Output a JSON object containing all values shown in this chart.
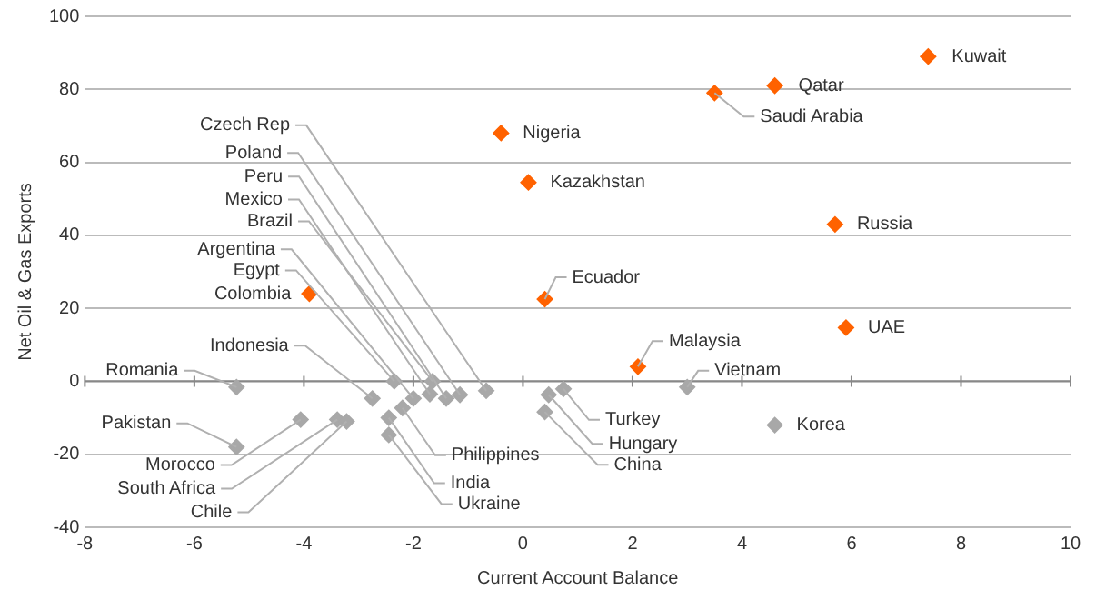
{
  "chart_data": {
    "type": "scatter",
    "xlabel": "Current Account Balance",
    "ylabel": "Net Oil & Gas Exports",
    "xlim": [
      -8,
      10
    ],
    "xticks": [
      -8,
      -6,
      -4,
      -2,
      0,
      2,
      4,
      6,
      8,
      10
    ],
    "ylim": [
      -40,
      100
    ],
    "yticks": [
      -40,
      -20,
      0,
      20,
      40,
      60,
      80,
      100
    ],
    "grid": "y",
    "legend": false,
    "marker": "diamond",
    "series": [
      {
        "color": "#ff6200",
        "x": [
          7.4,
          4.6,
          3.5,
          -0.4,
          0.1,
          5.7,
          0.4,
          -3.9,
          5.9,
          2.1
        ],
        "values": [
          89,
          81,
          79,
          68,
          54.5,
          43,
          22.5,
          24,
          14.7,
          4
        ]
      },
      {
        "color": "#a8a8a8",
        "x": [
          -5.23,
          -5.23,
          -4.06,
          -3.39,
          -3.22,
          -2.75,
          -2.35,
          -2.0,
          -1.65,
          -1.7,
          -1.4,
          -1.15,
          -0.67,
          -2.2,
          -2.45,
          -2.45,
          0.74,
          0.47,
          0.4,
          3.0,
          4.6
        ],
        "values": [
          -1.6,
          -18,
          -10.5,
          -10.5,
          -11,
          -4.7,
          0,
          -4.7,
          0,
          -3.5,
          -4.7,
          -3.7,
          -2.6,
          -7.3,
          -10,
          -14.7,
          -2.1,
          -3.7,
          -8.4,
          -1.6,
          -12
        ]
      }
    ],
    "annotations": [
      {
        "text": "Kuwait",
        "x": 7.4,
        "y": 89
      },
      {
        "text": "Qatar",
        "x": 4.6,
        "y": 81
      },
      {
        "text": "Saudi Arabia",
        "x": 3.5,
        "y": 79
      },
      {
        "text": "Nigeria",
        "x": -0.4,
        "y": 68
      },
      {
        "text": "Kazakhstan",
        "x": 0.1,
        "y": 54.5
      },
      {
        "text": "Russia",
        "x": 5.7,
        "y": 43
      },
      {
        "text": "Ecuador",
        "x": 0.4,
        "y": 22.5
      },
      {
        "text": "Colombia",
        "x": -3.9,
        "y": 24
      },
      {
        "text": "UAE",
        "x": 5.9,
        "y": 14.7
      },
      {
        "text": "Malaysia",
        "x": 2.1,
        "y": 4
      },
      {
        "text": "Romania",
        "x": -5.23,
        "y": -1.6
      },
      {
        "text": "Pakistan",
        "x": -5.23,
        "y": -18
      },
      {
        "text": "Morocco",
        "x": -4.06,
        "y": -10.5
      },
      {
        "text": "South Africa",
        "x": -3.39,
        "y": -10.5
      },
      {
        "text": "Chile",
        "x": -3.22,
        "y": -11
      },
      {
        "text": "Indonesia",
        "x": -2.75,
        "y": -4.7
      },
      {
        "text": "Egypt",
        "x": -2.35,
        "y": 0
      },
      {
        "text": "Argentina",
        "x": -2.0,
        "y": -4.7
      },
      {
        "text": "Brazil",
        "x": -1.65,
        "y": 0
      },
      {
        "text": "Mexico",
        "x": -1.7,
        "y": -3.5
      },
      {
        "text": "Peru",
        "x": -1.4,
        "y": -4.7
      },
      {
        "text": "Poland",
        "x": -1.15,
        "y": -3.7
      },
      {
        "text": "Czech Rep",
        "x": -0.67,
        "y": -2.6
      },
      {
        "text": "Philippines",
        "x": -2.2,
        "y": -7.3
      },
      {
        "text": "India",
        "x": -2.45,
        "y": -10
      },
      {
        "text": "Ukraine",
        "x": -2.45,
        "y": -14.7
      },
      {
        "text": "Turkey",
        "x": 0.74,
        "y": -2.1
      },
      {
        "text": "Hungary",
        "x": 0.47,
        "y": -3.7
      },
      {
        "text": "China",
        "x": 0.4,
        "y": -8.4
      },
      {
        "text": "Vietnam",
        "x": 3.0,
        "y": -1.6
      },
      {
        "text": "Korea",
        "x": 4.6,
        "y": -12
      }
    ]
  }
}
